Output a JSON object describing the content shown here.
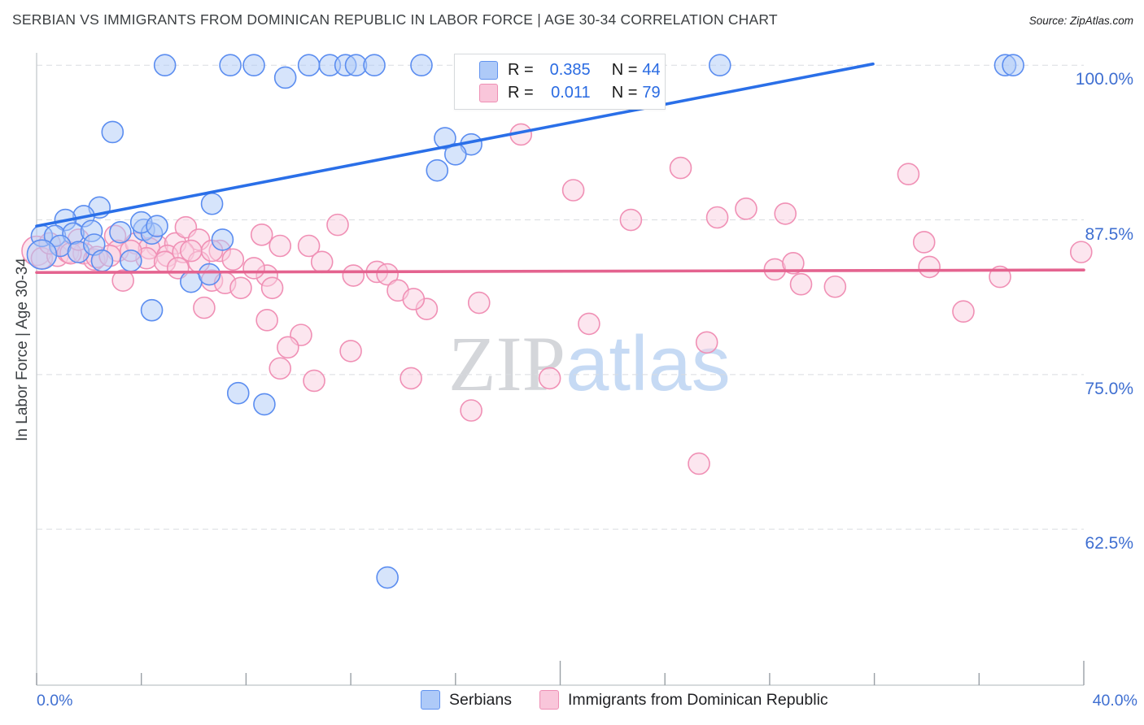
{
  "header": {
    "title": "SERBIAN VS IMMIGRANTS FROM DOMINICAN REPUBLIC IN LABOR FORCE | AGE 30-34 CORRELATION CHART",
    "source": "Source: ZipAtlas.com"
  },
  "watermark": {
    "zip": "ZIP",
    "atlas": "atlas"
  },
  "legend_box": {
    "rows": [
      {
        "series": "Serbians",
        "r_label": "R =",
        "r_value": "0.385",
        "n_label": "N =",
        "n_value": "44"
      },
      {
        "series": "Immigrants from Dominican Republic",
        "r_label": "R =",
        "r_value": "0.011",
        "n_label": "N =",
        "n_value": "79"
      }
    ]
  },
  "axes": {
    "y_axis_title": "In Labor Force | Age 30-34",
    "x_min_label": "0.0%",
    "x_max_label": "40.0%",
    "y_tick_labels": [
      "100.0%",
      "87.5%",
      "75.0%",
      "62.5%"
    ]
  },
  "bottom_legend": [
    {
      "label": "Serbians",
      "swatch_color": "#aecaf8",
      "swatch_border": "#6193ef"
    },
    {
      "label": "Immigrants from Dominican Republic",
      "swatch_color": "#f9c6da",
      "swatch_border": "#ee8fb4"
    }
  ],
  "colors": {
    "blue_point_fill": "rgba(174,202,248,0.5)",
    "blue_point_stroke": "#5b8df0",
    "pink_point_fill": "rgba(250,205,224,0.5)",
    "pink_point_stroke": "#f090b5",
    "blue_trend": "#2a6fe8",
    "pink_trend": "#e4638f",
    "grid": "#d9dce0",
    "axis_line": "#c9cdd1",
    "tick": "#9aa0a6",
    "tick_label": "#3f6fd1"
  },
  "chart_data": {
    "type": "scatter",
    "title": "SERBIAN VS IMMIGRANTS FROM DOMINICAN REPUBLIC IN LABOR FORCE | AGE 30-34 CORRELATION CHART",
    "xlabel_range": [
      "0.0%",
      "40.0%"
    ],
    "ylabel": "In Labor Force | Age 30-34",
    "xlim": [
      0,
      40
    ],
    "ylim": [
      49.9,
      101.0
    ],
    "y_ticks": [
      100,
      87.5,
      75,
      62.5
    ],
    "x_ticks": [
      0,
      4,
      8,
      12,
      16,
      20,
      24,
      28,
      32,
      36,
      40
    ],
    "x_ticks_long": [
      20,
      40
    ],
    "grid": "dashed-horizontal",
    "legend_position": "top-center-box and bottom-center",
    "series": [
      {
        "name": "Serbians",
        "R": 0.385,
        "N": 44,
        "points": [
          [
            4.9,
            100.0
          ],
          [
            7.4,
            100.0
          ],
          [
            8.3,
            100.0
          ],
          [
            9.5,
            99.0
          ],
          [
            10.4,
            100.0
          ],
          [
            11.2,
            100.0
          ],
          [
            11.8,
            100.0
          ],
          [
            12.2,
            100.0
          ],
          [
            12.9,
            100.0
          ],
          [
            14.7,
            100.0
          ],
          [
            26.1,
            100.0
          ],
          [
            37.0,
            100.0
          ],
          [
            37.3,
            100.0
          ],
          [
            2.9,
            94.6
          ],
          [
            15.6,
            94.1
          ],
          [
            16.6,
            93.6
          ],
          [
            16.0,
            92.8
          ],
          [
            15.3,
            91.5
          ],
          [
            4.4,
            80.2
          ],
          [
            7.7,
            73.5
          ],
          [
            8.7,
            72.6
          ],
          [
            13.4,
            58.6
          ],
          [
            2.4,
            88.5
          ],
          [
            6.7,
            88.8
          ],
          [
            1.8,
            87.8
          ],
          [
            1.1,
            87.5
          ],
          [
            0.2,
            86.2
          ],
          [
            0.7,
            86.2
          ],
          [
            1.4,
            86.4
          ],
          [
            2.1,
            86.6
          ],
          [
            3.2,
            86.5
          ],
          [
            4.1,
            86.7
          ],
          [
            4.4,
            86.4
          ],
          [
            0.9,
            85.4
          ],
          [
            1.6,
            84.9
          ],
          [
            2.2,
            85.5
          ],
          [
            0.2,
            84.7,
            18
          ],
          [
            2.5,
            84.2
          ],
          [
            3.6,
            84.2
          ],
          [
            5.9,
            82.5
          ],
          [
            6.6,
            83.1
          ],
          [
            4.0,
            87.3
          ],
          [
            4.6,
            87.0
          ],
          [
            7.1,
            85.9
          ]
        ],
        "trendline": {
          "x0": 0,
          "y0": 87.0,
          "x1": 31.95,
          "y1": 100.1
        }
      },
      {
        "name": "Immigrants from Dominican Republic",
        "R": 0.011,
        "N": 79,
        "points": [
          [
            0.0,
            85.0,
            18
          ],
          [
            0.2,
            84.4
          ],
          [
            0.8,
            84.6
          ],
          [
            1.2,
            84.9
          ],
          [
            1.8,
            84.8
          ],
          [
            2.2,
            84.3
          ],
          [
            3.0,
            86.2
          ],
          [
            3.1,
            85.0
          ],
          [
            3.8,
            85.6
          ],
          [
            4.6,
            85.4
          ],
          [
            5.3,
            85.6
          ],
          [
            5.7,
            86.9
          ],
          [
            6.2,
            85.9
          ],
          [
            7.0,
            85.0
          ],
          [
            3.3,
            82.6
          ],
          [
            4.3,
            85.2
          ],
          [
            5.0,
            84.6
          ],
          [
            6.7,
            82.6
          ],
          [
            7.2,
            82.4
          ],
          [
            8.6,
            86.3
          ],
          [
            9.3,
            85.4
          ],
          [
            8.8,
            83.0
          ],
          [
            10.4,
            85.4
          ],
          [
            11.5,
            87.1
          ],
          [
            10.9,
            84.1
          ],
          [
            13.0,
            83.3
          ],
          [
            12.1,
            83.0
          ],
          [
            13.4,
            83.1
          ],
          [
            13.8,
            81.8
          ],
          [
            14.9,
            80.3
          ],
          [
            14.4,
            81.1
          ],
          [
            16.9,
            80.8
          ],
          [
            18.5,
            94.4
          ],
          [
            20.5,
            89.9
          ],
          [
            24.6,
            91.7
          ],
          [
            22.7,
            87.5
          ],
          [
            26.0,
            87.7
          ],
          [
            27.1,
            88.4
          ],
          [
            28.6,
            88.0
          ],
          [
            28.2,
            83.5
          ],
          [
            28.9,
            84.0
          ],
          [
            29.2,
            82.3
          ],
          [
            30.5,
            82.1
          ],
          [
            33.3,
            91.2
          ],
          [
            33.9,
            85.7
          ],
          [
            34.1,
            83.7
          ],
          [
            36.8,
            82.9
          ],
          [
            35.4,
            80.1
          ],
          [
            25.6,
            77.6
          ],
          [
            25.3,
            67.8
          ],
          [
            21.1,
            79.1
          ],
          [
            8.8,
            79.4
          ],
          [
            10.1,
            78.2
          ],
          [
            9.6,
            77.2
          ],
          [
            9.3,
            75.5
          ],
          [
            10.6,
            74.5
          ],
          [
            6.4,
            80.4
          ],
          [
            12.0,
            76.9
          ],
          [
            14.3,
            74.7
          ],
          [
            19.6,
            74.7
          ],
          [
            16.6,
            72.1
          ],
          [
            4.2,
            84.4
          ],
          [
            4.9,
            84.1
          ],
          [
            5.6,
            84.9
          ],
          [
            6.2,
            84.1
          ],
          [
            6.7,
            85.0
          ],
          [
            1.3,
            84.8
          ],
          [
            2.3,
            84.5
          ],
          [
            39.9,
            84.9
          ],
          [
            7.8,
            82.0
          ],
          [
            8.3,
            83.6
          ],
          [
            0.5,
            85.6
          ],
          [
            1.6,
            85.9
          ],
          [
            2.8,
            84.6
          ],
          [
            3.6,
            85.0
          ],
          [
            5.4,
            83.6
          ],
          [
            5.9,
            85.0
          ],
          [
            7.5,
            84.3
          ],
          [
            9.0,
            82.0
          ]
        ],
        "trendline": {
          "x0": 0,
          "y0": 83.25,
          "x1": 40.0,
          "y1": 83.45
        }
      }
    ]
  }
}
